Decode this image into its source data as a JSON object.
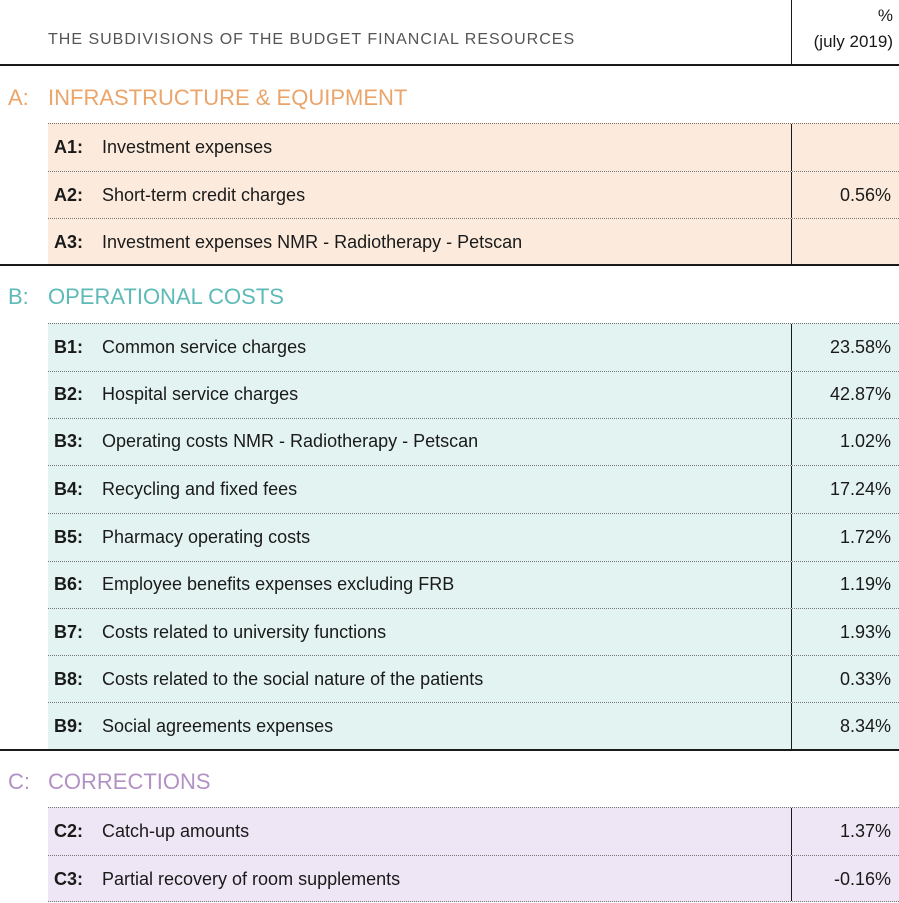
{
  "header": {
    "title": "THE SUBDIVISIONS OF THE BUDGET FINANCIAL RESOURCES",
    "pct_symbol": "%",
    "pct_period": "(july 2019)"
  },
  "sections": [
    {
      "letter": "A:",
      "title": "INFRASTRUCTURE & EQUIPMENT",
      "color": "#eba56b",
      "background": "#fcebdd",
      "rows": [
        {
          "code": "A1:",
          "label": "Investment expenses",
          "value": ""
        },
        {
          "code": "A2:",
          "label": "Short-term credit charges",
          "value": "0.56%"
        },
        {
          "code": "A3:",
          "label": "Investment expenses NMR - Radiotherapy - Petscan",
          "value": ""
        }
      ]
    },
    {
      "letter": "B:",
      "title": "OPERATIONAL COSTS",
      "color": "#5dbab6",
      "background": "#e3f3f1",
      "rows": [
        {
          "code": "B1:",
          "label": "Common service charges",
          "value": "23.58%"
        },
        {
          "code": "B2:",
          "label": "Hospital service charges",
          "value": "42.87%"
        },
        {
          "code": "B3:",
          "label": "Operating costs NMR - Radiotherapy - Petscan",
          "value": "1.02%"
        },
        {
          "code": "B4:",
          "label": "Recycling and fixed fees",
          "value": "17.24%"
        },
        {
          "code": "B5:",
          "label": "Pharmacy operating costs",
          "value": "1.72%"
        },
        {
          "code": "B6:",
          "label": "Employee benefits expenses excluding FRB",
          "value": "1.19%"
        },
        {
          "code": "B7:",
          "label": "Costs related to university functions",
          "value": "1.93%"
        },
        {
          "code": "B8:",
          "label": "Costs related to the social nature of the patients",
          "value": "0.33%"
        },
        {
          "code": "B9:",
          "label": "Social agreements expenses",
          "value": "8.34%"
        }
      ]
    },
    {
      "letter": "C:",
      "title": "CORRECTIONS",
      "color": "#b291c4",
      "background": "#eee5f5",
      "rows": [
        {
          "code": "C2:",
          "label": "Catch-up amounts",
          "value": "1.37%"
        },
        {
          "code": "C3:",
          "label": "Partial recovery of room supplements",
          "value": "-0.16%"
        }
      ]
    }
  ]
}
